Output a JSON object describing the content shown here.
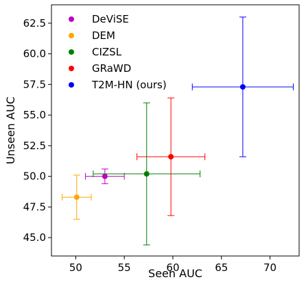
{
  "chart_data": {
    "type": "scatter",
    "xlabel": "Seen AUC",
    "ylabel": "Unseen AUC",
    "xlim": [
      47.5,
      73
    ],
    "ylim": [
      43.5,
      64
    ],
    "xticks": [
      50,
      55,
      60,
      65,
      70
    ],
    "xtick_labels": [
      "50",
      "55",
      "60",
      "65",
      "70"
    ],
    "yticks": [
      45.0,
      47.5,
      50.0,
      52.5,
      55.0,
      57.5,
      60.0,
      62.5
    ],
    "ytick_labels": [
      "45.0",
      "47.5",
      "50.0",
      "52.5",
      "55.0",
      "57.5",
      "60.0",
      "62.5"
    ],
    "grid": false,
    "legend_position": "top-left",
    "series": [
      {
        "name": "DeViSE",
        "color": "#c000c0",
        "x": 53.0,
        "y": 50.0,
        "xerr": [
          51.0,
          55.0
        ],
        "yerr": [
          49.4,
          50.6
        ]
      },
      {
        "name": "DEM",
        "color": "#ffa500",
        "x": 50.1,
        "y": 48.3,
        "xerr": [
          48.6,
          51.6
        ],
        "yerr": [
          46.5,
          50.1
        ]
      },
      {
        "name": "CIZSL",
        "color": "#007f00",
        "x": 57.3,
        "y": 50.2,
        "xerr": [
          51.8,
          62.8
        ],
        "yerr": [
          44.4,
          56.0
        ]
      },
      {
        "name": "GRaWD",
        "color": "#ff0000",
        "x": 59.8,
        "y": 51.6,
        "xerr": [
          56.3,
          63.3
        ],
        "yerr": [
          46.8,
          56.4
        ]
      },
      {
        "name": "T2M-HN (ours)",
        "color": "#0000ff",
        "x": 67.2,
        "y": 57.3,
        "xerr": [
          62.0,
          72.4
        ],
        "yerr": [
          51.6,
          63.0
        ]
      }
    ]
  }
}
